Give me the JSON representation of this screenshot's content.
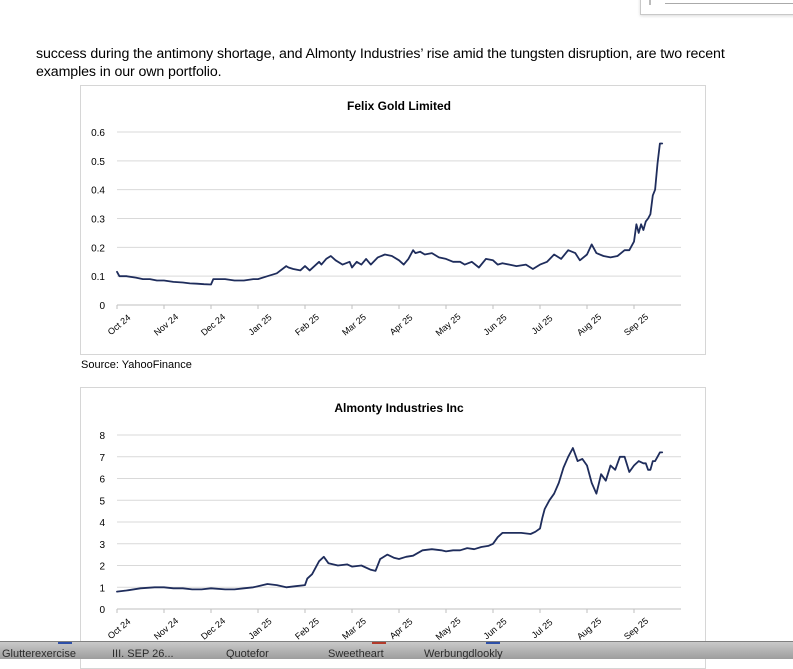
{
  "intro_text": "success during the antimony shortage, and Almonty Industries’ rise amid the tungsten disruption, are two recent examples in our own portfolio.",
  "source_text": "Source: YahooFinance",
  "colors": {
    "line": "#1f2d5c",
    "grid": "#d9d9d9",
    "axis": "#bfbfbf",
    "text": "#000000"
  },
  "chart_data": [
    {
      "type": "line",
      "title": "Felix Gold Limited",
      "xlabel": "",
      "ylabel": "",
      "ylim": [
        0,
        0.6
      ],
      "yticks": [
        "0",
        "0.1",
        "0.2",
        "0.3",
        "0.4",
        "0.5",
        "0.6"
      ],
      "xtick_labels": [
        "Oct 24",
        "Nov 24",
        "Dec 24",
        "Jan 25",
        "Feb 25",
        "Mar 25",
        "Apr 25",
        "May 25",
        "Jun 25",
        "Jul 25",
        "Aug 25",
        "Sep 25"
      ],
      "grid": true,
      "series": [
        {
          "name": "Felix Gold Limited",
          "x": [
            0.0,
            0.05,
            0.2,
            0.4,
            0.55,
            0.7,
            0.85,
            1.0,
            1.2,
            1.4,
            1.55,
            1.7,
            1.85,
            2.0,
            2.05,
            2.3,
            2.5,
            2.7,
            2.9,
            3.0,
            3.2,
            3.4,
            3.6,
            3.65,
            3.75,
            3.9,
            4.0,
            4.1,
            4.3,
            4.35,
            4.45,
            4.55,
            4.65,
            4.8,
            4.95,
            5.0,
            5.1,
            5.2,
            5.3,
            5.4,
            5.55,
            5.7,
            5.85,
            6.0,
            6.1,
            6.2,
            6.3,
            6.35,
            6.45,
            6.55,
            6.7,
            6.85,
            7.0,
            7.15,
            7.3,
            7.4,
            7.55,
            7.7,
            7.85,
            8.0,
            8.1,
            8.2,
            8.35,
            8.5,
            8.7,
            8.85,
            9.0,
            9.15,
            9.3,
            9.45,
            9.6,
            9.75,
            9.85,
            10.0,
            10.1,
            10.2,
            10.35,
            10.5,
            10.65,
            10.8,
            10.9,
            11.0,
            11.05,
            11.1,
            11.15,
            11.2,
            11.25,
            11.3,
            11.35,
            11.4,
            11.45,
            11.5,
            11.55,
            11.6
          ],
          "values": [
            0.115,
            0.1,
            0.1,
            0.095,
            0.09,
            0.09,
            0.085,
            0.085,
            0.08,
            0.078,
            0.075,
            0.074,
            0.072,
            0.071,
            0.09,
            0.09,
            0.085,
            0.085,
            0.09,
            0.09,
            0.1,
            0.11,
            0.135,
            0.13,
            0.125,
            0.12,
            0.135,
            0.12,
            0.15,
            0.14,
            0.16,
            0.17,
            0.155,
            0.14,
            0.15,
            0.13,
            0.15,
            0.14,
            0.16,
            0.14,
            0.165,
            0.175,
            0.17,
            0.155,
            0.14,
            0.16,
            0.19,
            0.18,
            0.185,
            0.175,
            0.18,
            0.165,
            0.16,
            0.15,
            0.15,
            0.14,
            0.15,
            0.13,
            0.16,
            0.155,
            0.14,
            0.145,
            0.14,
            0.135,
            0.14,
            0.125,
            0.14,
            0.15,
            0.175,
            0.16,
            0.19,
            0.18,
            0.155,
            0.175,
            0.21,
            0.18,
            0.17,
            0.165,
            0.17,
            0.19,
            0.19,
            0.22,
            0.28,
            0.25,
            0.28,
            0.26,
            0.29,
            0.3,
            0.315,
            0.38,
            0.4,
            0.49,
            0.56,
            0.56
          ]
        }
      ]
    },
    {
      "type": "line",
      "title": "Almonty Industries Inc",
      "xlabel": "",
      "ylabel": "",
      "ylim": [
        0,
        8
      ],
      "yticks": [
        "0",
        "1",
        "2",
        "3",
        "4",
        "5",
        "6",
        "7",
        "8"
      ],
      "xtick_labels": [
        "Oct 24",
        "Nov 24",
        "Dec 24",
        "Jan 25",
        "Feb 25",
        "Mar 25",
        "Apr 25",
        "May 25",
        "Jun 25",
        "Jul 25",
        "Aug 25",
        "Sep 25"
      ],
      "grid": true,
      "series": [
        {
          "name": "Almonty Industries Inc",
          "x": [
            0.0,
            0.2,
            0.5,
            0.8,
            1.0,
            1.2,
            1.4,
            1.6,
            1.8,
            2.0,
            2.3,
            2.5,
            2.7,
            2.9,
            3.0,
            3.2,
            3.4,
            3.6,
            3.8,
            4.0,
            4.05,
            4.15,
            4.3,
            4.4,
            4.5,
            4.7,
            4.9,
            5.0,
            5.2,
            5.4,
            5.5,
            5.6,
            5.75,
            5.9,
            6.0,
            6.15,
            6.3,
            6.5,
            6.7,
            6.9,
            7.0,
            7.15,
            7.3,
            7.45,
            7.6,
            7.75,
            7.9,
            8.0,
            8.1,
            8.2,
            8.4,
            8.6,
            8.8,
            8.9,
            9.0,
            9.05,
            9.1,
            9.2,
            9.3,
            9.4,
            9.5,
            9.6,
            9.7,
            9.8,
            9.9,
            10.0,
            10.1,
            10.2,
            10.3,
            10.4,
            10.5,
            10.6,
            10.7,
            10.8,
            10.9,
            11.0,
            11.1,
            11.2,
            11.25,
            11.3,
            11.35,
            11.4,
            11.45,
            11.5,
            11.55,
            11.6
          ],
          "values": [
            0.8,
            0.85,
            0.95,
            1.0,
            1.0,
            0.95,
            0.95,
            0.9,
            0.9,
            0.95,
            0.9,
            0.9,
            0.95,
            1.0,
            1.05,
            1.15,
            1.1,
            1.0,
            1.05,
            1.1,
            1.4,
            1.6,
            2.2,
            2.4,
            2.1,
            2.0,
            2.05,
            1.95,
            2.0,
            1.8,
            1.75,
            2.3,
            2.5,
            2.35,
            2.3,
            2.4,
            2.45,
            2.7,
            2.75,
            2.7,
            2.65,
            2.7,
            2.7,
            2.8,
            2.75,
            2.85,
            2.9,
            3.0,
            3.3,
            3.5,
            3.5,
            3.5,
            3.45,
            3.55,
            3.7,
            4.2,
            4.6,
            5.0,
            5.3,
            5.8,
            6.5,
            7.0,
            7.4,
            6.8,
            6.9,
            6.6,
            5.8,
            5.3,
            6.2,
            5.9,
            6.6,
            6.4,
            7.0,
            7.0,
            6.3,
            6.6,
            6.8,
            6.7,
            6.7,
            6.4,
            6.4,
            6.8,
            6.8,
            7.0,
            7.2,
            7.2
          ]
        }
      ]
    }
  ],
  "taskbar": {
    "items": [
      "Glutterexercise",
      "III. SEP 26...",
      "Quotefor",
      "Sweetheart",
      "Werbungdlookly"
    ]
  }
}
